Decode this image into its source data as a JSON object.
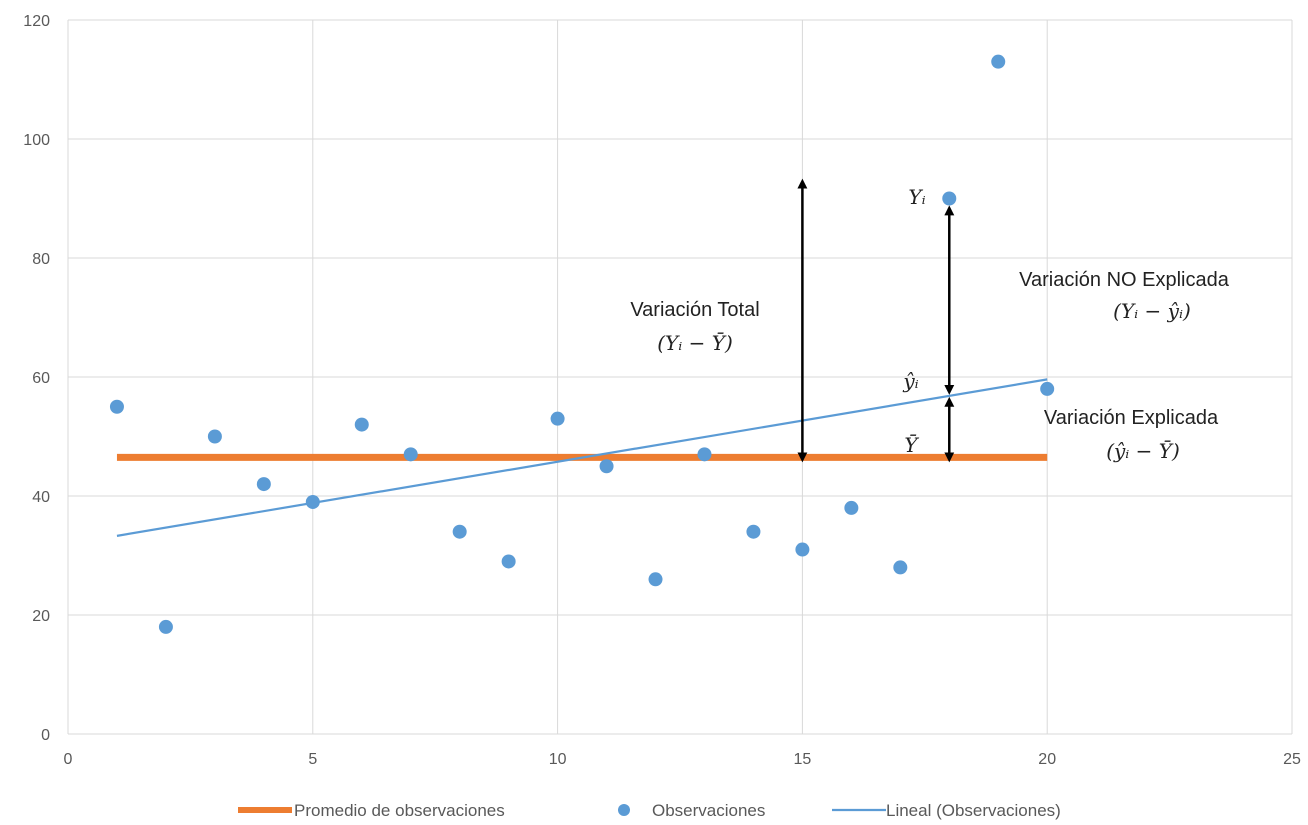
{
  "chart_data": {
    "type": "scatter",
    "title": "",
    "xlabel": "",
    "ylabel": "",
    "xlim": [
      0,
      25
    ],
    "ylim": [
      0,
      120
    ],
    "x_ticks": [
      0,
      5,
      10,
      15,
      20,
      25
    ],
    "y_ticks": [
      0,
      20,
      40,
      60,
      80,
      100,
      120
    ],
    "grid": true,
    "series": [
      {
        "name": "Observaciones",
        "kind": "scatter",
        "color": "#5B9BD5",
        "x": [
          1,
          2,
          3,
          4,
          5,
          6,
          7,
          8,
          9,
          10,
          11,
          12,
          13,
          14,
          15,
          16,
          17,
          18,
          19,
          20
        ],
        "y": [
          55,
          18,
          50,
          42,
          39,
          52,
          47,
          34,
          29,
          53,
          45,
          26,
          47,
          34,
          31,
          38,
          28,
          90,
          113,
          58
        ]
      },
      {
        "name": "Promedio de observaciones",
        "kind": "line",
        "color": "#ED7D31",
        "x": [
          1,
          20
        ],
        "y": [
          46.5,
          46.5
        ]
      },
      {
        "name": "Lineal (Observaciones)",
        "kind": "line",
        "color": "#5B9BD5",
        "x": [
          1,
          20
        ],
        "y": [
          33.3,
          59.6
        ]
      }
    ],
    "legend": {
      "position": "bottom",
      "entries": [
        "Promedio de observaciones",
        "Observaciones",
        "Lineal (Observaciones)"
      ]
    },
    "annotations": {
      "total_label": "Variación Total",
      "total_formula": "(Yᵢ − Ȳ)",
      "unexplained_label": "Variación NO Explicada",
      "unexplained_formula": "(Yᵢ − ŷᵢ)",
      "explained_label": "Variación Explicada",
      "explained_formula": "(ŷᵢ − Ȳ)",
      "yi_label": "Yᵢ",
      "yhat_label": "ŷᵢ",
      "ybar_label": "Ȳ"
    }
  }
}
